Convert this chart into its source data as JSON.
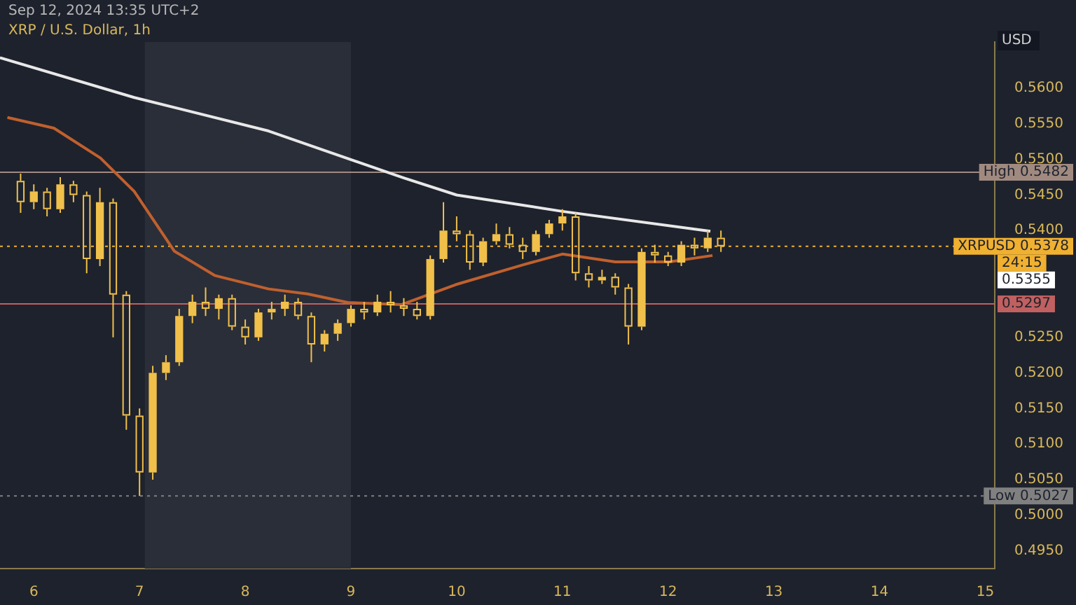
{
  "chart_data": {
    "type": "candlestick",
    "title": "XRP / U.S. Dollar, 1h",
    "ylabel": "USD",
    "annotations": [
      "Sep 12, 2024 13:35 UTC+2",
      "24:15",
      "0.5355"
    ],
    "color": "#f0c04a",
    "x": [
      5.875,
      6,
      6.125,
      6.25,
      6.375,
      6.5,
      6.625,
      6.75,
      6.875,
      7,
      7.125,
      7.25,
      7.375,
      7.5,
      7.625,
      7.75,
      7.875,
      8,
      8.125,
      8.25,
      8.375,
      8.5,
      8.625,
      8.75,
      8.875,
      9,
      9.125,
      9.25,
      9.375,
      9.5,
      9.625,
      9.75,
      9.875,
      10,
      10.125,
      10.25,
      10.375,
      10.5,
      10.625,
      10.75,
      10.875,
      11,
      11.125,
      11.25,
      11.375,
      11.5,
      11.625,
      11.75,
      11.875,
      12,
      12.125,
      12.25,
      12.375,
      12.5
    ],
    "ohlc": [
      [
        0.547,
        0.548,
        0.5425,
        0.544
      ],
      [
        0.544,
        0.5465,
        0.543,
        0.5455
      ],
      [
        0.5455,
        0.546,
        0.542,
        0.543
      ],
      [
        0.543,
        0.5475,
        0.5425,
        0.5465
      ],
      [
        0.5465,
        0.547,
        0.544,
        0.545
      ],
      [
        0.545,
        0.5455,
        0.534,
        0.536
      ],
      [
        0.536,
        0.546,
        0.535,
        0.544
      ],
      [
        0.544,
        0.5445,
        0.525,
        0.531
      ],
      [
        0.531,
        0.5315,
        0.512,
        0.514
      ],
      [
        0.514,
        0.515,
        0.5027,
        0.506
      ],
      [
        0.506,
        0.521,
        0.505,
        0.52
      ],
      [
        0.52,
        0.5225,
        0.519,
        0.5215
      ],
      [
        0.5215,
        0.529,
        0.521,
        0.528
      ],
      [
        0.528,
        0.531,
        0.527,
        0.53
      ],
      [
        0.53,
        0.532,
        0.528,
        0.529
      ],
      [
        0.529,
        0.531,
        0.5275,
        0.5305
      ],
      [
        0.5305,
        0.531,
        0.526,
        0.5265
      ],
      [
        0.5265,
        0.5275,
        0.524,
        0.525
      ],
      [
        0.525,
        0.529,
        0.5245,
        0.5285
      ],
      [
        0.5285,
        0.53,
        0.5275,
        0.529
      ],
      [
        0.529,
        0.531,
        0.528,
        0.53
      ],
      [
        0.53,
        0.5305,
        0.5275,
        0.528
      ],
      [
        0.528,
        0.5285,
        0.5215,
        0.524
      ],
      [
        0.524,
        0.526,
        0.523,
        0.5255
      ],
      [
        0.5255,
        0.5275,
        0.5245,
        0.527
      ],
      [
        0.527,
        0.5295,
        0.5265,
        0.529
      ],
      [
        0.529,
        0.53,
        0.5275,
        0.5285
      ],
      [
        0.5285,
        0.531,
        0.528,
        0.53
      ],
      [
        0.53,
        0.5315,
        0.5285,
        0.5295
      ],
      [
        0.5295,
        0.5305,
        0.528,
        0.529
      ],
      [
        0.529,
        0.53,
        0.5275,
        0.528
      ],
      [
        0.528,
        0.5365,
        0.5275,
        0.536
      ],
      [
        0.536,
        0.544,
        0.5355,
        0.54
      ],
      [
        0.54,
        0.542,
        0.5385,
        0.5395
      ],
      [
        0.5395,
        0.54,
        0.5345,
        0.5355
      ],
      [
        0.5355,
        0.539,
        0.535,
        0.5385
      ],
      [
        0.5385,
        0.541,
        0.538,
        0.5395
      ],
      [
        0.5395,
        0.5405,
        0.5375,
        0.538
      ],
      [
        0.538,
        0.539,
        0.536,
        0.537
      ],
      [
        0.537,
        0.54,
        0.5365,
        0.5395
      ],
      [
        0.5395,
        0.5415,
        0.539,
        0.541
      ],
      [
        0.541,
        0.543,
        0.54,
        0.542
      ],
      [
        0.542,
        0.5425,
        0.533,
        0.534
      ],
      [
        0.534,
        0.535,
        0.532,
        0.533
      ],
      [
        0.533,
        0.5345,
        0.5325,
        0.5335
      ],
      [
        0.5335,
        0.534,
        0.531,
        0.532
      ],
      [
        0.532,
        0.5325,
        0.524,
        0.5265
      ],
      [
        0.5265,
        0.5375,
        0.526,
        0.537
      ],
      [
        0.537,
        0.538,
        0.5355,
        0.5365
      ],
      [
        0.5365,
        0.537,
        0.535,
        0.5355
      ],
      [
        0.5355,
        0.5385,
        0.535,
        0.538
      ],
      [
        0.538,
        0.539,
        0.5365,
        0.5375
      ],
      [
        0.5375,
        0.54,
        0.537,
        0.539
      ],
      [
        0.539,
        0.54,
        0.537,
        0.5378
      ]
    ],
    "series": [
      {
        "type": "line",
        "color": "#e8e8e8",
        "x": [
          5.68,
          6.95,
          8.22,
          9.5,
          10,
          11,
          12.4
        ],
        "values": [
          0.5643,
          0.5587,
          0.554,
          0.5474,
          0.545,
          0.5427,
          0.5399
        ]
      },
      {
        "type": "line",
        "color": "#c0602d",
        "x": [
          5.75,
          6.19,
          6.63,
          6.95,
          7.33,
          7.71,
          8.22,
          8.59,
          8.97,
          9.48,
          9.99,
          10.63,
          11,
          11.5,
          12.01,
          12.42
        ],
        "values": [
          0.5559,
          0.5544,
          0.5502,
          0.5455,
          0.5371,
          0.5337,
          0.5318,
          0.5311,
          0.5299,
          0.5296,
          0.5324,
          0.5352,
          0.5367,
          0.5356,
          0.5356,
          0.5365
        ]
      }
    ],
    "xlim": [
      5.68,
      15.09
    ],
    "xticks": [
      6,
      7,
      8,
      9,
      10,
      11,
      12,
      13,
      14,
      15
    ],
    "ylim": [
      0.4925,
      0.5665
    ],
    "yticks": [
      {
        "value": 0.495,
        "label": "0.4950"
      },
      {
        "value": 0.5,
        "label": "0.5000"
      },
      {
        "value": 0.505,
        "label": "0.5050"
      },
      {
        "value": 0.51,
        "label": "0.5100"
      },
      {
        "value": 0.515,
        "label": "0.5150"
      },
      {
        "value": 0.52,
        "label": "0.5200"
      },
      {
        "value": 0.525,
        "label": "0.5250"
      },
      {
        "value": 0.54,
        "label": "0.5400"
      },
      {
        "value": 0.545,
        "label": "0.5450"
      },
      {
        "value": 0.55,
        "label": "0.5500"
      },
      {
        "value": 0.555,
        "label": "0.5550"
      },
      {
        "value": 0.56,
        "label": "0.5600"
      }
    ],
    "ref_lines": [
      {
        "axis": "y",
        "value": 0.5482,
        "label": "High 0.5482",
        "color": "#a08a80",
        "line_style": "solid"
      },
      {
        "axis": "y",
        "value": 0.5378,
        "label": "XRPUSD 0.5378",
        "color": "#f0b030",
        "line_style": "dotted"
      },
      {
        "axis": "y",
        "value": 0.5297,
        "label": "0.5297",
        "color": "#c06060",
        "line_style": "solid"
      },
      {
        "axis": "y",
        "value": 0.5027,
        "label": "Low 0.5027",
        "color": "#808080",
        "line_style": "dotted"
      }
    ],
    "bands": [
      {
        "axis": "x",
        "from": 7.05,
        "to": 9.0,
        "color": "#2a2e39"
      }
    ],
    "grid": false,
    "legend": false
  }
}
